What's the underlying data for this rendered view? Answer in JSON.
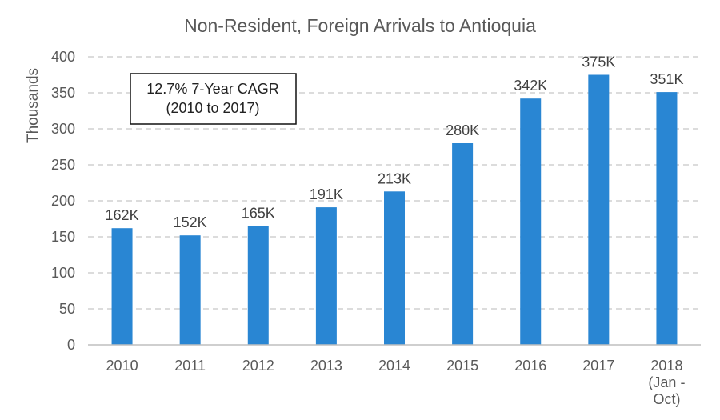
{
  "chart_data": {
    "type": "bar",
    "title": "Non-Resident, Foreign Arrivals to Antioquia",
    "ylabel": "Thousands",
    "xlabel": "",
    "ylim": [
      0,
      400
    ],
    "yticks": [
      0,
      50,
      100,
      150,
      200,
      250,
      300,
      350,
      400
    ],
    "grid": true,
    "color": "#2986d3",
    "categories": [
      [
        "2010"
      ],
      [
        "2011"
      ],
      [
        "2012"
      ],
      [
        "2013"
      ],
      [
        "2014"
      ],
      [
        "2015"
      ],
      [
        "2016"
      ],
      [
        "2017"
      ],
      [
        "2018",
        "(Jan -",
        "Oct)"
      ]
    ],
    "values": [
      162,
      152,
      165,
      191,
      213,
      280,
      342,
      375,
      351
    ],
    "data_labels": [
      "162K",
      "152K",
      "165K",
      "191K",
      "213K",
      "280K",
      "342K",
      "375K",
      "351K"
    ],
    "annotation": {
      "lines": [
        "12.7% 7-Year CAGR",
        "(2010 to 2017)"
      ]
    }
  }
}
